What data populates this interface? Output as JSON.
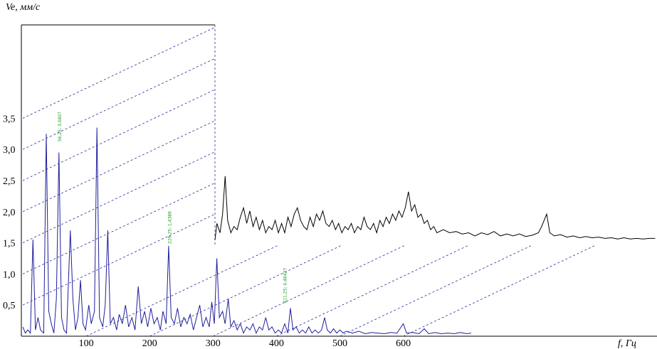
{
  "chart_data": {
    "type": "waterfall",
    "ylabel": "Ve, мм/с",
    "xlabel": "f, Гц",
    "ylim": [
      0,
      5
    ],
    "xlim": [
      0,
      1000
    ],
    "yticks": [
      {
        "value": 0.5,
        "label": "0,5"
      },
      {
        "value": 1.0,
        "label": "1,0"
      },
      {
        "value": 1.5,
        "label": "1,5"
      },
      {
        "value": 2.0,
        "label": "2,0"
      },
      {
        "value": 2.5,
        "label": "2,5"
      },
      {
        "value": 3.0,
        "label": "3,0"
      },
      {
        "value": 3.5,
        "label": "3,5"
      }
    ],
    "xticks": [
      100,
      200,
      300,
      400,
      500,
      600
    ],
    "grid": true,
    "series": [
      {
        "color": "#000000",
        "depth": 1,
        "x": [
          0,
          3,
          8,
          12,
          16,
          20,
          25,
          30,
          35,
          40,
          45,
          50,
          55,
          60,
          65,
          70,
          75,
          80,
          85,
          90,
          95,
          100,
          105,
          110,
          115,
          120,
          125,
          130,
          135,
          140,
          145,
          150,
          155,
          160,
          165,
          170,
          175,
          180,
          185,
          190,
          195,
          200,
          205,
          210,
          215,
          220,
          225,
          230,
          235,
          240,
          245,
          250,
          255,
          260,
          265,
          270,
          275,
          280,
          285,
          290,
          295,
          300,
          305,
          310,
          315,
          320,
          325,
          330,
          335,
          340,
          345,
          350,
          360,
          370,
          380,
          390,
          400,
          410,
          420,
          430,
          440,
          450,
          460,
          470,
          480,
          490,
          500,
          510,
          515,
          523,
          528,
          535,
          545,
          555,
          565,
          575,
          585,
          595,
          605,
          615,
          625,
          635,
          645,
          655,
          665,
          675,
          685,
          694
        ],
        "values": [
          0.08,
          0.35,
          0.2,
          0.5,
          1.11,
          0.4,
          0.2,
          0.3,
          0.25,
          0.45,
          0.6,
          0.35,
          0.55,
          0.3,
          0.45,
          0.25,
          0.4,
          0.2,
          0.3,
          0.25,
          0.4,
          0.2,
          0.35,
          0.2,
          0.45,
          0.3,
          0.5,
          0.6,
          0.4,
          0.3,
          0.25,
          0.45,
          0.3,
          0.5,
          0.4,
          0.55,
          0.35,
          0.3,
          0.4,
          0.25,
          0.35,
          0.2,
          0.3,
          0.25,
          0.35,
          0.2,
          0.3,
          0.25,
          0.45,
          0.3,
          0.25,
          0.35,
          0.2,
          0.4,
          0.3,
          0.45,
          0.35,
          0.5,
          0.4,
          0.55,
          0.45,
          0.6,
          0.86,
          0.55,
          0.65,
          0.45,
          0.5,
          0.35,
          0.4,
          0.25,
          0.3,
          0.2,
          0.25,
          0.2,
          0.22,
          0.18,
          0.2,
          0.15,
          0.2,
          0.17,
          0.22,
          0.15,
          0.18,
          0.15,
          0.18,
          0.14,
          0.16,
          0.2,
          0.3,
          0.5,
          0.2,
          0.15,
          0.17,
          0.13,
          0.15,
          0.12,
          0.14,
          0.12,
          0.13,
          0.11,
          0.12,
          0.1,
          0.12,
          0.1,
          0.11,
          0.1,
          0.11,
          0.11
        ]
      },
      {
        "color": "#1f1f9c",
        "depth": 0,
        "x": [
          0,
          4,
          8,
          12,
          16,
          20,
          24,
          28,
          33,
          37,
          41,
          45,
          49,
          53,
          57,
          61,
          65,
          69,
          75,
          79,
          83,
          87,
          91,
          95,
          99,
          104,
          108,
          113,
          117,
          121,
          126,
          130,
          134,
          138,
          143,
          148,
          152,
          157,
          162,
          167,
          172,
          177,
          182,
          187,
          192,
          197,
          202,
          207,
          212,
          217,
          221,
          226,
          230,
          234,
          239,
          244,
          249,
          254,
          259,
          264,
          269,
          274,
          279,
          284,
          289,
          294,
          298,
          302,
          306,
          310,
          315,
          319,
          324,
          328,
          333,
          338,
          343,
          348,
          353,
          358,
          363,
          368,
          373,
          378,
          383,
          388,
          393,
          398,
          403,
          408,
          413,
          418,
          422,
          426,
          431,
          436,
          441,
          446,
          451,
          456,
          461,
          466,
          471,
          476,
          480,
          485,
          490,
          495,
          500,
          505,
          510,
          520,
          530,
          540,
          550,
          560,
          570,
          580,
          590,
          600,
          605,
          615,
          625,
          633,
          640,
          650,
          660,
          670,
          680,
          690,
          700,
          707
        ],
        "values": [
          0.15,
          0.05,
          0.1,
          0.05,
          1.55,
          0.1,
          0.3,
          0.1,
          0.05,
          3.25,
          0.4,
          0.2,
          0.05,
          0.6,
          2.95,
          0.3,
          0.1,
          0.05,
          1.7,
          0.6,
          0.1,
          0.3,
          0.9,
          0.2,
          0.1,
          0.5,
          0.2,
          0.4,
          3.35,
          0.3,
          0.15,
          0.5,
          1.7,
          0.2,
          0.3,
          0.1,
          0.35,
          0.2,
          0.5,
          0.15,
          0.3,
          0.1,
          0.8,
          0.2,
          0.4,
          0.15,
          0.45,
          0.2,
          0.3,
          0.1,
          0.4,
          0.2,
          1.45,
          0.3,
          0.2,
          0.45,
          0.15,
          0.3,
          0.2,
          0.35,
          0.1,
          0.3,
          0.5,
          0.15,
          0.3,
          0.15,
          0.55,
          0.2,
          1.25,
          0.3,
          0.4,
          0.2,
          0.6,
          0.15,
          0.25,
          0.1,
          0.2,
          0.05,
          0.15,
          0.1,
          0.2,
          0.05,
          0.15,
          0.1,
          0.3,
          0.1,
          0.15,
          0.05,
          0.1,
          0.05,
          0.2,
          0.05,
          0.45,
          0.1,
          0.15,
          0.05,
          0.1,
          0.05,
          0.15,
          0.05,
          0.1,
          0.05,
          0.1,
          0.3,
          0.1,
          0.05,
          0.12,
          0.05,
          0.1,
          0.05,
          0.08,
          0.05,
          0.08,
          0.04,
          0.06,
          0.05,
          0.04,
          0.06,
          0.05,
          0.2,
          0.05,
          0.06,
          0.04,
          0.12,
          0.04,
          0.06,
          0.04,
          0.05,
          0.04,
          0.06,
          0.04,
          0.05
        ]
      }
    ],
    "annotations": [
      {
        "text": "56,25; 3,0807",
        "x": 56.25,
        "y": 3.0807
      },
      {
        "text": "229,25; 1,4386",
        "x": 229.25,
        "y": 1.4386
      },
      {
        "text": "411,25; 0,48427",
        "x": 411.25,
        "y": 0.48427
      }
    ]
  }
}
